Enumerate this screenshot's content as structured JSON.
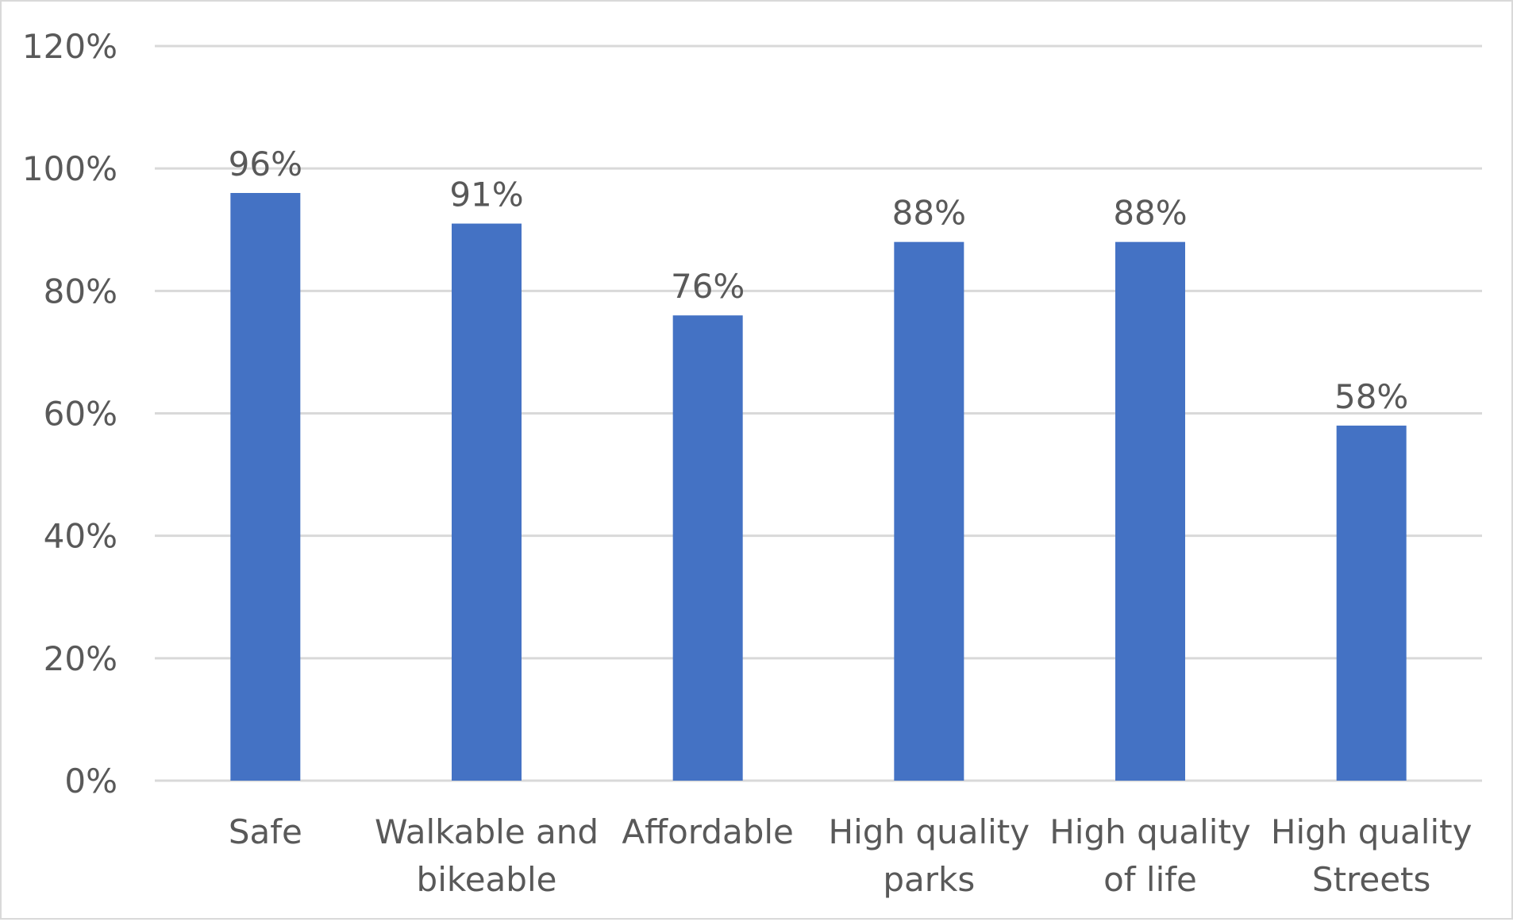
{
  "chart_data": {
    "type": "bar",
    "title": "",
    "xlabel": "",
    "ylabel": "",
    "ylim": [
      0,
      1.2
    ],
    "yticks": [
      0,
      0.2,
      0.4,
      0.6,
      0.8,
      1.0,
      1.2
    ],
    "ytick_labels": [
      "0%",
      "20%",
      "40%",
      "60%",
      "80%",
      "100%",
      "120%"
    ],
    "grid": true,
    "legend": "none",
    "categories": [
      [
        "Safe"
      ],
      [
        "Walkable and",
        "bikeable"
      ],
      [
        "Affordable"
      ],
      [
        "High quality",
        "parks"
      ],
      [
        "High quality",
        "of life"
      ],
      [
        "High quality",
        "Streets"
      ]
    ],
    "series": [
      {
        "values": [
          0.96,
          0.91,
          0.76,
          0.88,
          0.88,
          0.58
        ],
        "value_labels": [
          "96%",
          "91%",
          "76%",
          "88%",
          "88%",
          "58%"
        ],
        "color": "#4472c4"
      }
    ],
    "colors": {
      "bar": "#4472c4",
      "gridline": "#d9d9d9",
      "text": "#595959",
      "border": "#d9d9d9"
    }
  }
}
